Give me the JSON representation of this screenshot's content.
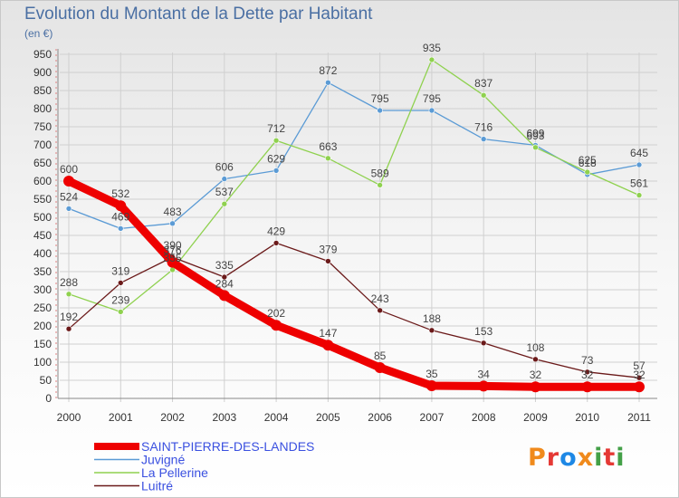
{
  "title": "Evolution du Montant de la Dette par Habitant",
  "subtitle": "(en €)",
  "logo_text": "Proxiti",
  "colors": {
    "grid": "#d0d0d0",
    "axis": "#888888",
    "legend_text": "#3a50e0"
  },
  "chart_data": {
    "type": "line",
    "title": "Evolution du Montant de la Dette par Habitant",
    "subtitle": "(en €)",
    "xlabel": "",
    "ylabel": "",
    "x": [
      "2000",
      "2001",
      "2002",
      "2003",
      "2004",
      "2005",
      "2006",
      "2007",
      "2008",
      "2009",
      "2010",
      "2011"
    ],
    "yticks": [
      "0",
      "50",
      "100",
      "150",
      "200",
      "250",
      "300",
      "350",
      "400",
      "450",
      "500",
      "550",
      "600",
      "650",
      "700",
      "750",
      "800",
      "850",
      "900",
      "950"
    ],
    "ylim": [
      0,
      950
    ],
    "grid": true,
    "legend_position": "bottom-left",
    "series": [
      {
        "name": "SAINT-PIERRE-DES-LANDES",
        "color": "#ee0000",
        "width": 9,
        "values": [
          600,
          532,
          376,
          284,
          202,
          147,
          85,
          35,
          34,
          32,
          32,
          32
        ]
      },
      {
        "name": "Juvigné",
        "color": "#5b9bd5",
        "width": 1.3,
        "values": [
          524,
          469,
          483,
          606,
          629,
          872,
          795,
          795,
          716,
          699,
          618,
          645
        ]
      },
      {
        "name": "La Pellerine",
        "color": "#8fd14f",
        "width": 1.3,
        "values": [
          288,
          239,
          355,
          537,
          712,
          663,
          589,
          935,
          837,
          693,
          625,
          561
        ]
      },
      {
        "name": "Luitré",
        "color": "#6b1a1a",
        "width": 1.3,
        "values": [
          192,
          319,
          390,
          335,
          429,
          379,
          243,
          188,
          153,
          108,
          73,
          57
        ]
      }
    ]
  }
}
